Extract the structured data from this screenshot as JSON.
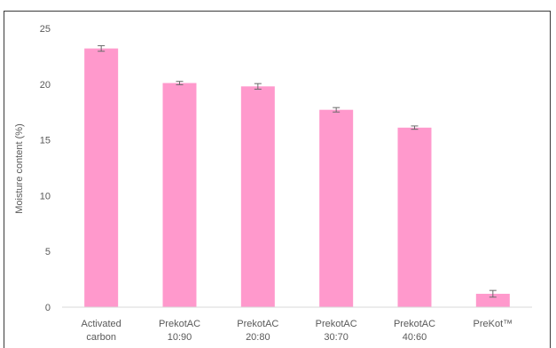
{
  "chart_data": {
    "type": "bar",
    "categories": [
      [
        "Activated",
        "carbon"
      ],
      [
        "PrekotAC",
        "10:90"
      ],
      [
        "PrekotAC",
        "20:80"
      ],
      [
        "PrekotAC",
        "30:70"
      ],
      [
        "PrekotAC",
        "40:60"
      ],
      [
        "PreKot™"
      ]
    ],
    "values": [
      23.2,
      20.1,
      19.8,
      17.7,
      16.1,
      1.2
    ],
    "errors": [
      0.25,
      0.15,
      0.25,
      0.2,
      0.15,
      0.3
    ],
    "ylabel": "Moisture content (%)",
    "xlabel": "",
    "title": "",
    "ylim": [
      0,
      25
    ],
    "yticks": [
      0,
      5,
      10,
      15,
      20,
      25
    ],
    "grid": false,
    "legend": "none",
    "bar_color": "#ff99cc",
    "error_color": "#6b6b6b",
    "axis_color": "#d9d9d9"
  }
}
